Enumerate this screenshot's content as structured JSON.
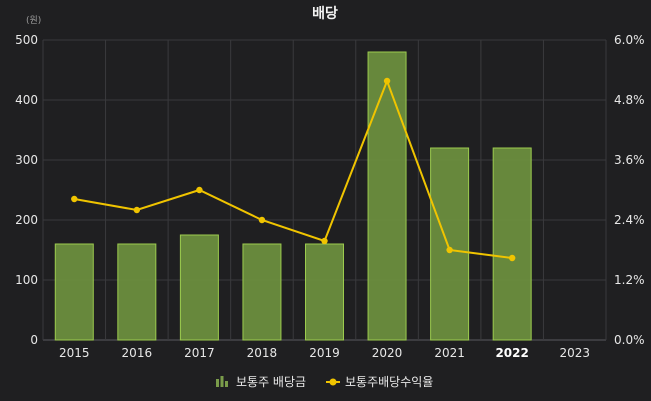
{
  "chart_data": {
    "type": "bar",
    "title": "배당",
    "y_unit": "(원)",
    "categories": [
      "2015",
      "2016",
      "2017",
      "2018",
      "2019",
      "2020",
      "2021",
      "2022",
      "2023"
    ],
    "highlight_category": "2022",
    "ylim_left": [
      0,
      500
    ],
    "yticks_left": [
      "0",
      "100",
      "200",
      "300",
      "400",
      "500"
    ],
    "ylim_right": [
      0,
      6.0
    ],
    "yticks_right": [
      "0.0%",
      "1.2%",
      "2.4%",
      "3.6%",
      "4.8%",
      "6.0%"
    ],
    "grid": true,
    "legend_position": "bottom-center",
    "series": [
      {
        "name": "보통주 배당금",
        "type": "bar",
        "axis": "left",
        "color": "#6b8e3e",
        "edge_color": "#9ccb4e",
        "values": [
          160,
          160,
          175,
          160,
          160,
          480,
          320,
          320,
          null
        ]
      },
      {
        "name": "보통주배당수익율",
        "type": "line",
        "axis": "right",
        "color": "#f0c400",
        "values": [
          2.82,
          2.6,
          3.0,
          2.4,
          1.98,
          5.18,
          1.8,
          1.64,
          null
        ]
      }
    ]
  }
}
